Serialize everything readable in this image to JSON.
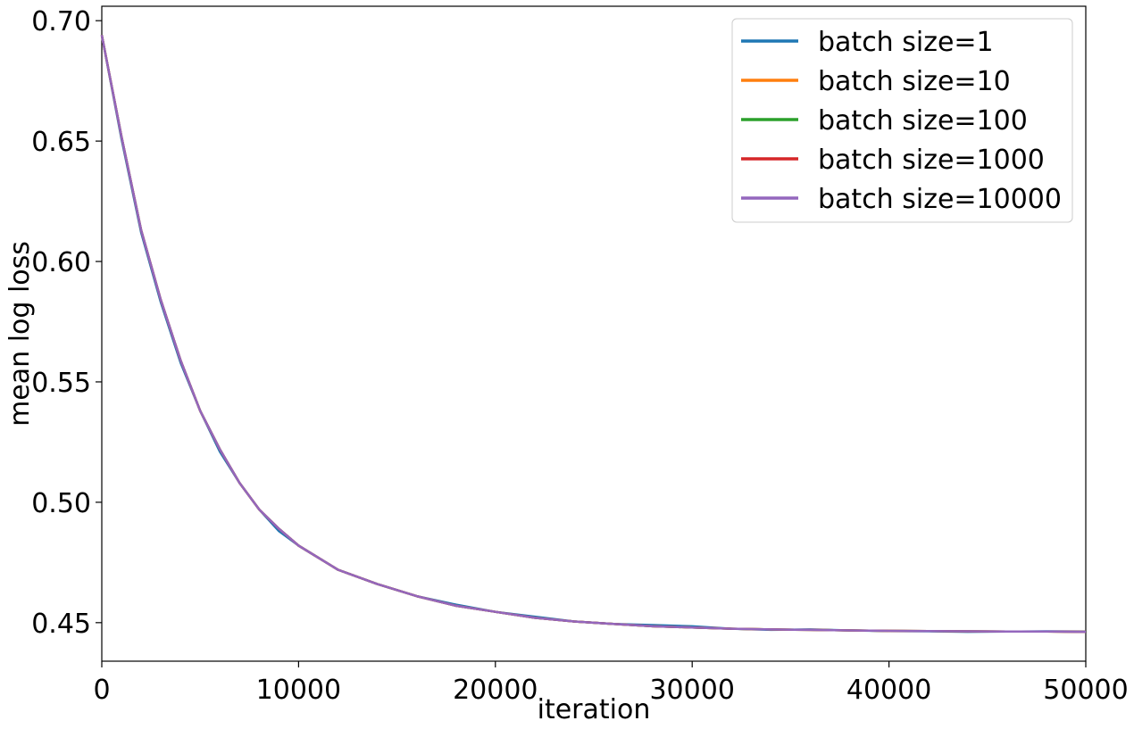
{
  "chart_data": {
    "type": "line",
    "title": "",
    "xlabel": "iteration",
    "ylabel": "mean log loss",
    "xlim": [
      0,
      50000
    ],
    "ylim": [
      0.434,
      0.706
    ],
    "x_ticks": [
      0,
      10000,
      20000,
      30000,
      40000,
      50000
    ],
    "x_tick_labels": [
      "0",
      "10000",
      "20000",
      "30000",
      "40000",
      "50000"
    ],
    "y_ticks": [
      0.45,
      0.5,
      0.55,
      0.6,
      0.65,
      0.7
    ],
    "y_tick_labels": [
      "0.45",
      "0.50",
      "0.55",
      "0.60",
      "0.65",
      "0.70"
    ],
    "grid": false,
    "legend_position": "top-right",
    "x": [
      0,
      1000,
      2000,
      3000,
      4000,
      5000,
      6000,
      7000,
      8000,
      9000,
      10000,
      12000,
      14000,
      16000,
      18000,
      20000,
      22000,
      24000,
      26000,
      28000,
      30000,
      32000,
      34000,
      36000,
      38000,
      40000,
      42000,
      44000,
      46000,
      48000,
      50000
    ],
    "series": [
      {
        "name": "batch size=1",
        "color": "#1f77b4",
        "values": [
          0.694,
          0.651,
          0.612,
          0.583,
          0.558,
          0.538,
          0.521,
          0.508,
          0.497,
          0.488,
          0.482,
          0.472,
          0.466,
          0.461,
          0.4575,
          0.4545,
          0.4525,
          0.4505,
          0.4495,
          0.449,
          0.4485,
          0.4475,
          0.447,
          0.4472,
          0.4468,
          0.4465,
          0.4464,
          0.4462,
          0.4463,
          0.4464,
          0.4463
        ]
      },
      {
        "name": "batch size=10",
        "color": "#ff7f0e",
        "values": [
          0.694,
          0.652,
          0.613,
          0.584,
          0.559,
          0.538,
          0.522,
          0.508,
          0.497,
          0.489,
          0.482,
          0.472,
          0.466,
          0.461,
          0.457,
          0.4545,
          0.452,
          0.4505,
          0.4495,
          0.4485,
          0.448,
          0.4475,
          0.4472,
          0.447,
          0.4468,
          0.4466,
          0.4465,
          0.4464,
          0.4463,
          0.4463,
          0.4462
        ]
      },
      {
        "name": "batch size=100",
        "color": "#2ca02c",
        "values": [
          0.694,
          0.652,
          0.613,
          0.584,
          0.559,
          0.538,
          0.522,
          0.508,
          0.497,
          0.489,
          0.482,
          0.472,
          0.466,
          0.461,
          0.457,
          0.4545,
          0.452,
          0.4505,
          0.4495,
          0.4485,
          0.448,
          0.4475,
          0.4472,
          0.447,
          0.4468,
          0.4466,
          0.4465,
          0.4464,
          0.4463,
          0.4463,
          0.4462
        ]
      },
      {
        "name": "batch size=1000",
        "color": "#d62728",
        "values": [
          0.694,
          0.652,
          0.613,
          0.584,
          0.559,
          0.538,
          0.522,
          0.508,
          0.497,
          0.489,
          0.482,
          0.472,
          0.466,
          0.461,
          0.457,
          0.4545,
          0.452,
          0.4505,
          0.4495,
          0.4485,
          0.448,
          0.4475,
          0.4472,
          0.447,
          0.4468,
          0.4466,
          0.4465,
          0.4464,
          0.4463,
          0.4463,
          0.4462
        ]
      },
      {
        "name": "batch size=10000",
        "color": "#9467bd",
        "values": [
          0.694,
          0.652,
          0.613,
          0.584,
          0.559,
          0.538,
          0.522,
          0.508,
          0.497,
          0.489,
          0.482,
          0.472,
          0.466,
          0.461,
          0.457,
          0.4545,
          0.452,
          0.4505,
          0.4495,
          0.4485,
          0.448,
          0.4475,
          0.4472,
          0.447,
          0.4468,
          0.4466,
          0.4465,
          0.4464,
          0.4463,
          0.4463,
          0.4462
        ]
      }
    ]
  }
}
